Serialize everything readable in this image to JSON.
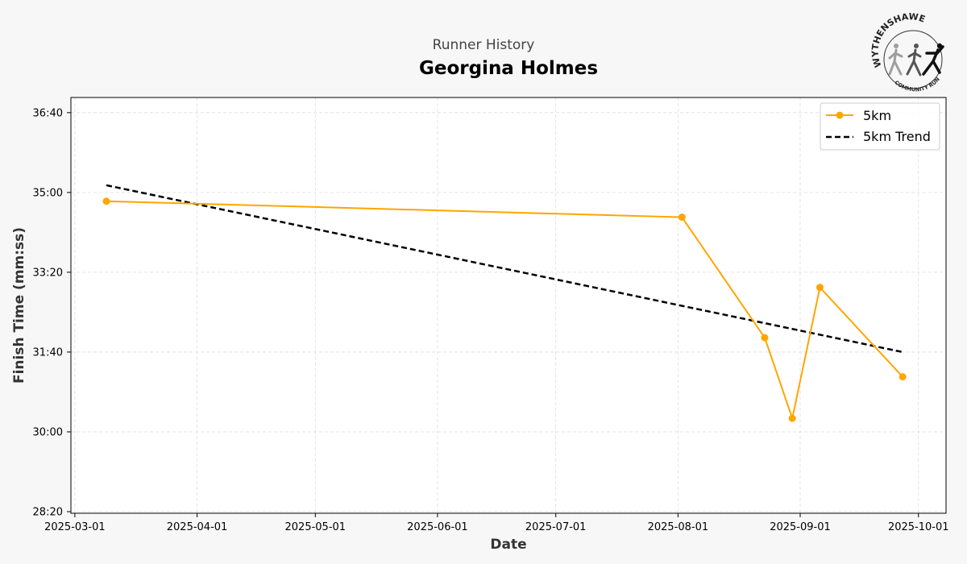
{
  "header": {
    "subtitle": "Runner History",
    "title": "Georgina Holmes"
  },
  "logo": {
    "top_text": "WYTHENSHAWE",
    "bottom_text": "COMMUNITY RUN"
  },
  "colors": {
    "series": "#FFA500",
    "trend": "#000000",
    "background": "#f7f7f7",
    "plot_background": "#ffffff",
    "grid": "#dddddd"
  },
  "chart_data": {
    "type": "line",
    "xlabel": "Date",
    "ylabel": "Finish Time (mm:ss)",
    "x_ticks": [
      "2025-03-01",
      "2025-04-01",
      "2025-05-01",
      "2025-06-01",
      "2025-07-01",
      "2025-08-01",
      "2025-09-01",
      "2025-10-01"
    ],
    "y_ticks": [
      "28:20",
      "30:00",
      "31:40",
      "33:20",
      "35:00",
      "36:40"
    ],
    "xlim": [
      "2025-02-28",
      "2025-10-08"
    ],
    "ylim": [
      "28:18",
      "36:59"
    ],
    "grid": true,
    "legend_position": "top-right",
    "series": [
      {
        "name": "5km",
        "style": "line-marker",
        "points": [
          {
            "x": "2025-03-09",
            "y": "34:49"
          },
          {
            "x": "2025-08-02",
            "y": "34:29"
          },
          {
            "x": "2025-08-23",
            "y": "31:58"
          },
          {
            "x": "2025-08-30",
            "y": "30:17"
          },
          {
            "x": "2025-09-06",
            "y": "33:01"
          },
          {
            "x": "2025-09-27",
            "y": "31:09"
          }
        ]
      },
      {
        "name": "5km Trend",
        "style": "dashed",
        "points": [
          {
            "x": "2025-03-09",
            "y": "35:09"
          },
          {
            "x": "2025-09-27",
            "y": "31:40"
          }
        ]
      }
    ]
  }
}
